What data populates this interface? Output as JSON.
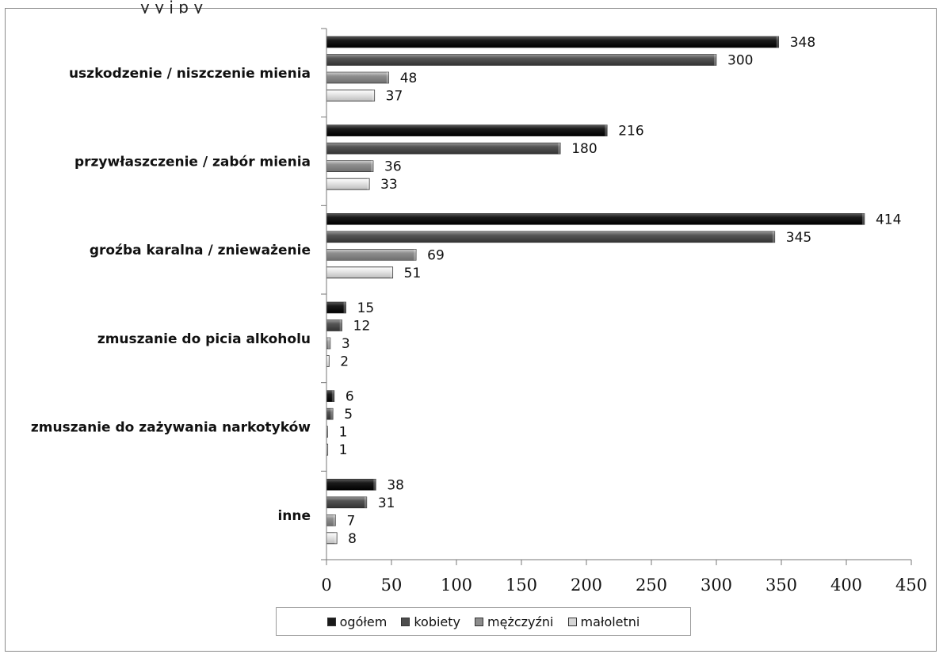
{
  "header": {
    "clipped_title": "y                                    y              j          p              y"
  },
  "chart_data": {
    "type": "bar",
    "orientation": "horizontal",
    "categories": [
      "uszkodzenie / niszczenie mienia",
      "przywłaszczenie / zabór mienia",
      "groźba karalna / znieważenie",
      "zmuszanie do picia alkoholu",
      "zmuszanie do zażywania narkotyków",
      "inne"
    ],
    "series": [
      {
        "name": "ogółem",
        "color": "#1a1a1a",
        "values": [
          348,
          216,
          414,
          15,
          6,
          38
        ]
      },
      {
        "name": "kobiety",
        "color": "#4d4d4d",
        "values": [
          300,
          180,
          345,
          12,
          5,
          31
        ]
      },
      {
        "name": "mężczyźni",
        "color": "#8c8c8c",
        "values": [
          48,
          36,
          69,
          3,
          1,
          7
        ]
      },
      {
        "name": "małoletni",
        "color": "#d6d6d6",
        "values": [
          37,
          33,
          51,
          2,
          1,
          8
        ]
      }
    ],
    "xlim": [
      0,
      450
    ],
    "xticks": [
      "0",
      "50",
      "100",
      "150",
      "200",
      "250",
      "300",
      "350",
      "400",
      "450"
    ],
    "grid": false,
    "legend_position": "bottom"
  }
}
